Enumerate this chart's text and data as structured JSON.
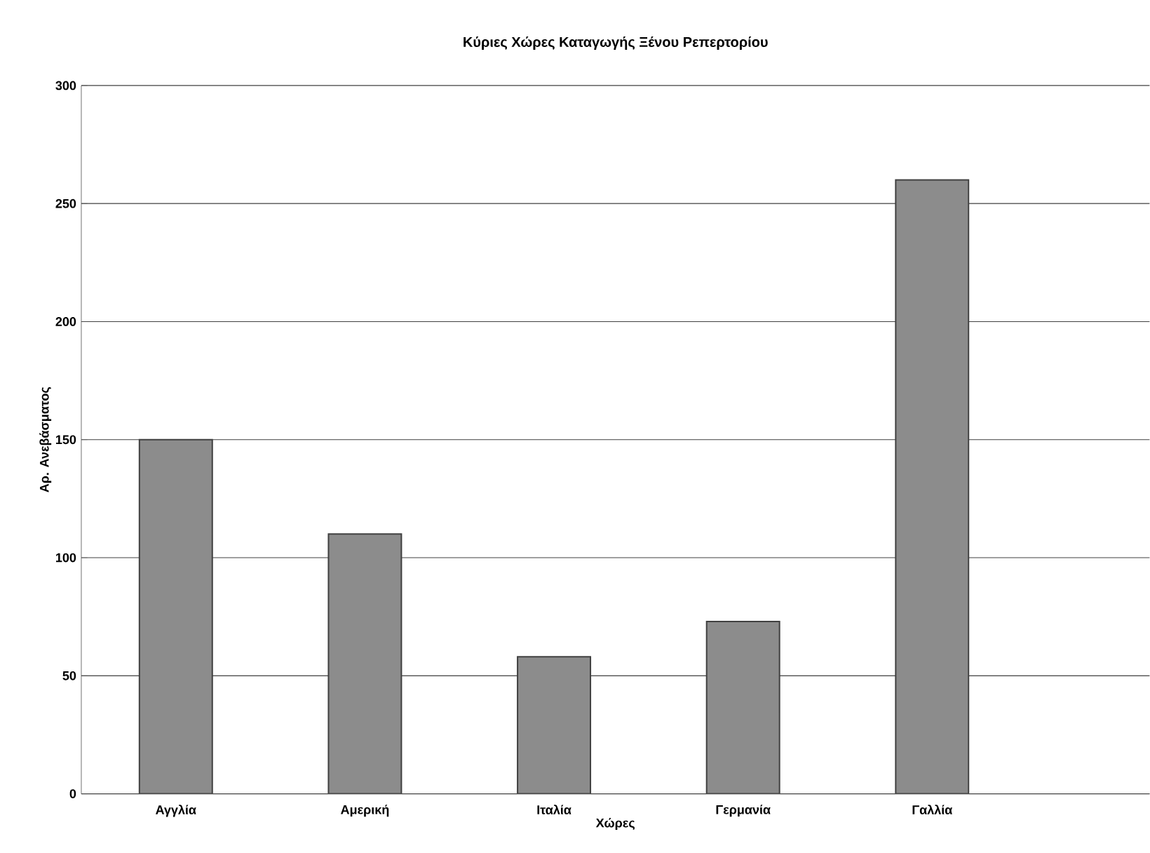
{
  "chart_data": {
    "type": "bar",
    "title": "Κύριες Χώρες Καταγωγής Ξένου Ρεπερτορίου",
    "xlabel": "Χώρες",
    "ylabel": "Αρ. Ανεβάσματος",
    "categories": [
      "Αγγλία",
      "Αμερική",
      "Ιταλία",
      "Γερμανία",
      "Γαλλία"
    ],
    "values": [
      150,
      110,
      58,
      73,
      260
    ],
    "color": "#8c8c8c",
    "ylim": [
      0,
      300
    ],
    "yticks": [
      0,
      50,
      100,
      150,
      200,
      250,
      300
    ],
    "grid": "y"
  }
}
